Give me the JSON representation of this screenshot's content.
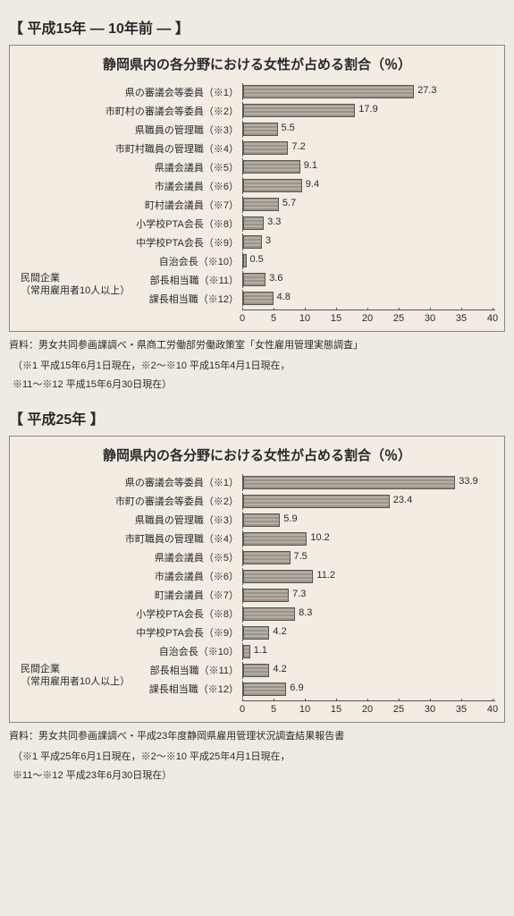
{
  "section1": {
    "header": "【 平成15年 ― 10年前 ― 】",
    "chart": {
      "type": "bar",
      "title": "静岡県内の各分野における女性が占める割合（％）",
      "xlim": [
        0,
        40
      ],
      "xtick_step": 5,
      "bar_color": "#a39d91",
      "border_color": "#555555",
      "background_color": "#f2ece3",
      "label_fontsize": 11,
      "title_fontsize": 15,
      "side_label_top": "民間企業",
      "side_label_bottom": "（常用雇用者10人以上）",
      "categories": [
        "県の審議会等委員（※1）",
        "市町村の審議会等委員（※2）",
        "県職員の管理職（※3）",
        "市町村職員の管理職（※4）",
        "県議会議員（※5）",
        "市議会議員（※6）",
        "町村議会議員（※7）",
        "小学校PTA会長（※8）",
        "中学校PTA会長（※9）",
        "自治会長（※10）",
        "部長相当職（※11）",
        "課長相当職（※12）"
      ],
      "values": [
        27.3,
        17.9,
        5.5,
        7.2,
        9.1,
        9.4,
        5.7,
        3.3,
        3.0,
        0.5,
        3.6,
        4.8
      ],
      "ticks": [
        0,
        5,
        10,
        15,
        20,
        25,
        30,
        35,
        40
      ]
    },
    "source": "資料：男女共同参画課調べ・県商工労働部労働政策室「女性雇用管理実態調査」",
    "note1": "（※1 平成15年6月1日現在，※2～※10 平成15年4月1日現在，",
    "note2": "※11～※12 平成15年6月30日現在）"
  },
  "section2": {
    "header": "【 平成25年 】",
    "chart": {
      "type": "bar",
      "title": "静岡県内の各分野における女性が占める割合（％）",
      "xlim": [
        0,
        40
      ],
      "xtick_step": 5,
      "bar_color": "#a39d91",
      "border_color": "#555555",
      "background_color": "#f2ece3",
      "label_fontsize": 11,
      "title_fontsize": 15,
      "side_label_top": "民間企業",
      "side_label_bottom": "（常用雇用者10人以上）",
      "categories": [
        "県の審議会等委員（※1）",
        "市町の審議会等委員（※2）",
        "県職員の管理職（※3）",
        "市町職員の管理職（※4）",
        "県議会議員（※5）",
        "市議会議員（※6）",
        "町議会議員（※7）",
        "小学校PTA会長（※8）",
        "中学校PTA会長（※9）",
        "自治会長（※10）",
        "部長相当職（※11）",
        "課長相当職（※12）"
      ],
      "values": [
        33.9,
        23.4,
        5.9,
        10.2,
        7.5,
        11.2,
        7.3,
        8.3,
        4.2,
        1.1,
        4.2,
        6.9
      ],
      "ticks": [
        0,
        5,
        10,
        15,
        20,
        25,
        30,
        35,
        40
      ]
    },
    "source": "資料：男女共同参画課調べ・平成23年度静岡県雇用管理状況調査結果報告書",
    "note1": "（※1 平成25年6月1日現在，※2～※10 平成25年4月1日現在，",
    "note2": "※11～※12 平成23年6月30日現在）"
  }
}
